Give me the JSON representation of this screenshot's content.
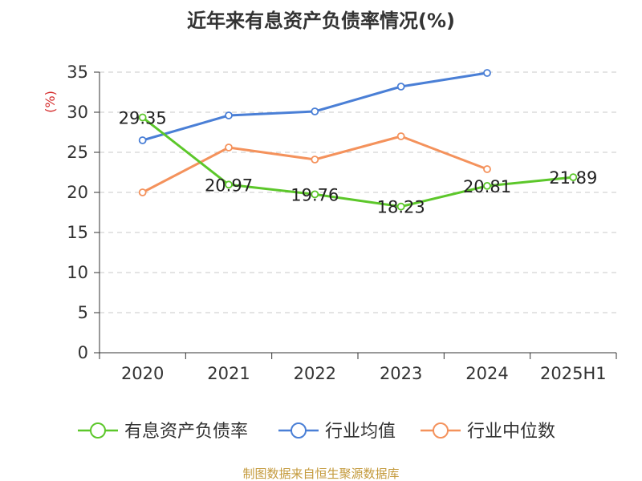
{
  "chart_data": {
    "type": "line",
    "title": "近年来有息资产负债率情况(%)",
    "ylabel": "(%)",
    "ylim": [
      0,
      35
    ],
    "yticks": [
      "0",
      "5",
      "10",
      "15",
      "20",
      "25",
      "30",
      "35"
    ],
    "categories": [
      "2020",
      "2021",
      "2022",
      "2023",
      "2024",
      "2025H1"
    ],
    "grid": true,
    "legend_position": "bottom",
    "series": [
      {
        "name": "有息资产负债率",
        "color": "#5cc72a",
        "values": [
          29.35,
          20.97,
          19.76,
          18.23,
          20.81,
          21.89
        ],
        "labels": [
          "29.35",
          "20.97",
          "19.76",
          "18.23",
          "20.81",
          "21.89"
        ]
      },
      {
        "name": "行业均值",
        "color": "#4a7fd6",
        "values": [
          26.5,
          29.6,
          30.1,
          33.2,
          34.9,
          null
        ]
      },
      {
        "name": "行业中位数",
        "color": "#f4925c",
        "values": [
          20.0,
          25.6,
          24.1,
          27.0,
          22.9,
          null
        ]
      }
    ]
  },
  "source": "制图数据来自恒生聚源数据库",
  "colors": {
    "ylabel": "#d42a2a",
    "source": "#c49a3c",
    "axis": "#333333",
    "grid": "#c8c8c8"
  }
}
